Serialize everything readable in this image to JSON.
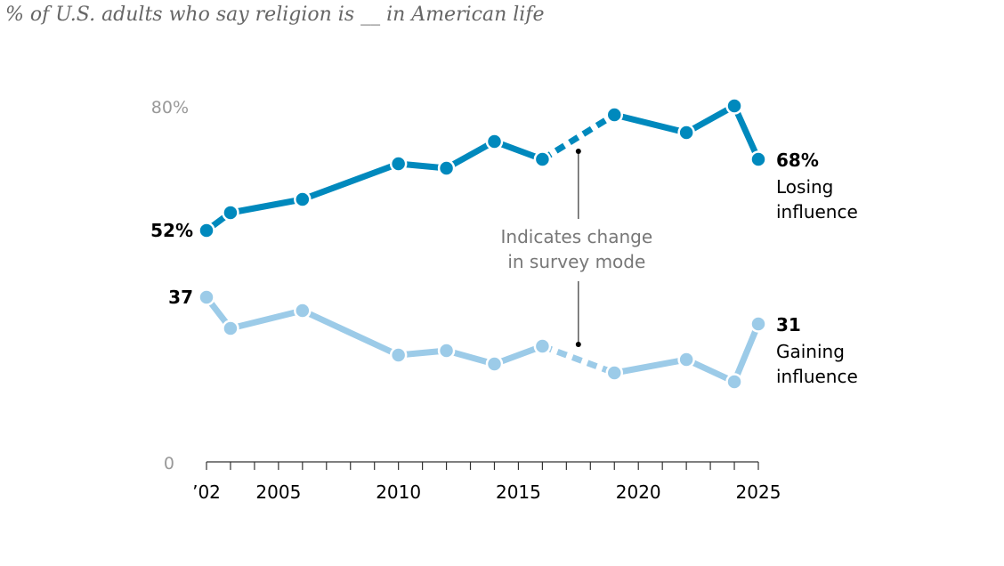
{
  "subtitle": "% of U.S. adults who say religion is __ in American life",
  "chart_data": {
    "type": "line",
    "title": "% of U.S. adults who say religion is __ in American life",
    "xlabel": "",
    "ylabel": "",
    "ylim": [
      0,
      80
    ],
    "xlim": [
      2002,
      2025
    ],
    "y_tick_labels": [
      "80%",
      "0"
    ],
    "x_tick_labels": [
      {
        "year": 2002,
        "label": "’02"
      },
      {
        "year": 2005,
        "label": "2005"
      },
      {
        "year": 2010,
        "label": "2010"
      },
      {
        "year": 2015,
        "label": "2015"
      },
      {
        "year": 2020,
        "label": "2020"
      },
      {
        "year": 2025,
        "label": "2025"
      }
    ],
    "survey_mode_change_between": [
      2016,
      2019
    ],
    "annotation": {
      "lines": [
        "Indicates change",
        "in survey mode"
      ]
    },
    "series": [
      {
        "name": "Losing influence",
        "name_lines": [
          "Losing",
          "influence"
        ],
        "color": "#0089bd",
        "start_label": "52%",
        "end_label": "68%",
        "x": [
          2002,
          2003,
          2006,
          2010,
          2012,
          2014,
          2016,
          2019,
          2022,
          2024,
          2025
        ],
        "values": [
          52,
          56,
          59,
          67,
          66,
          72,
          68,
          78,
          74,
          80,
          68
        ]
      },
      {
        "name": "Gaining influence",
        "name_lines": [
          "Gaining",
          "influence"
        ],
        "color": "#9ccbe8",
        "start_label": "37",
        "end_label": "31",
        "x": [
          2002,
          2003,
          2006,
          2010,
          2012,
          2014,
          2016,
          2019,
          2022,
          2024,
          2025
        ],
        "values": [
          37,
          30,
          34,
          24,
          25,
          22,
          26,
          20,
          23,
          18,
          31
        ]
      }
    ]
  }
}
